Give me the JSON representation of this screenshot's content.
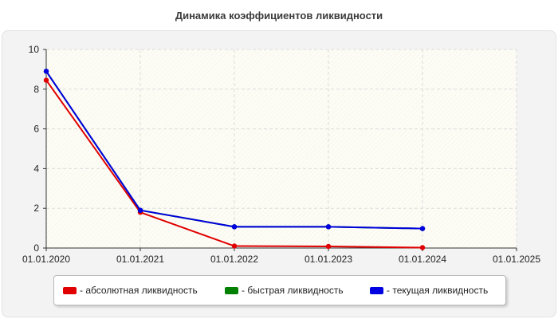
{
  "chart_data": {
    "type": "line",
    "title": "Динамика коэффициентов ликвидности",
    "xlabel": "",
    "ylabel": "",
    "x_ticks": [
      "01.01.2020",
      "01.01.2021",
      "01.01.2022",
      "01.01.2023",
      "01.01.2024",
      "01.01.2025"
    ],
    "y_ticks": [
      "0",
      "2",
      "4",
      "6",
      "8",
      "10"
    ],
    "ylim": [
      0,
      10
    ],
    "grid": true,
    "legend_position": "bottom",
    "x": [
      "01.01.2020",
      "01.01.2021",
      "01.01.2022",
      "01.01.2023",
      "01.01.2024"
    ],
    "series": [
      {
        "name": "- абсолютная ликвидность",
        "color": "#e00000",
        "values": [
          8.45,
          1.8,
          0.1,
          0.08,
          0.02
        ]
      },
      {
        "name": "- быстрая ликвидность",
        "color": "#008000",
        "values": [
          8.9,
          1.9,
          1.07,
          1.07,
          0.98
        ]
      },
      {
        "name": "- текущая ликвидность",
        "color": "#0000e0",
        "values": [
          8.9,
          1.9,
          1.07,
          1.07,
          0.98
        ]
      }
    ]
  }
}
